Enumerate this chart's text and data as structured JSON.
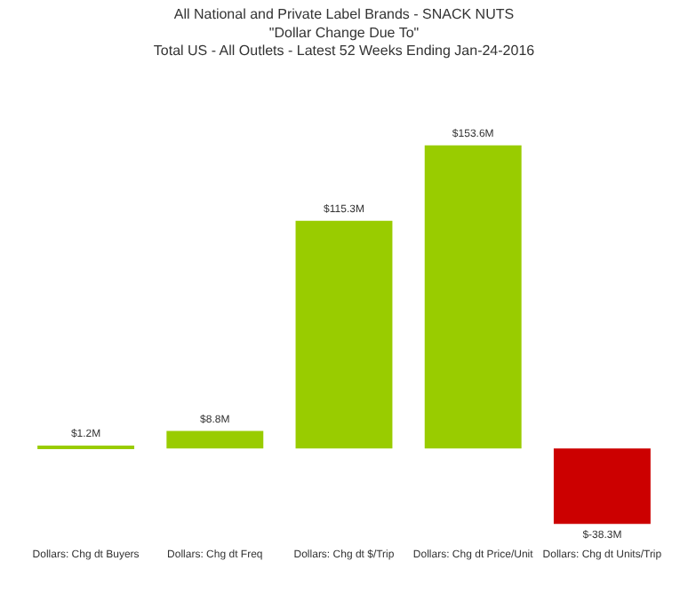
{
  "chart_data": {
    "type": "bar",
    "title": "All National and Private Label Brands - SNACK NUTS",
    "subtitle": "\"Dollar Change Due To\"\nTotal US - All Outlets - Latest 52 Weeks Ending Jan-24-2016",
    "categories": [
      "Dollars: Chg dt Buyers",
      "Dollars: Chg dt Freq",
      "Dollars: Chg dt $/Trip",
      "Dollars: Chg dt Price/Unit",
      "Dollars: Chg dt Units/Trip"
    ],
    "values": [
      1.2,
      8.8,
      115.3,
      153.6,
      -38.3
    ],
    "colors": [
      "#99cc00",
      "#99cc00",
      "#99cc00",
      "#99cc00",
      "#cc0000"
    ],
    "value_labels": [
      "$1.2M",
      "$8.8M",
      "$115.3M",
      "$153.6M",
      "$-38.3M"
    ],
    "tick_labels": "x"
  }
}
